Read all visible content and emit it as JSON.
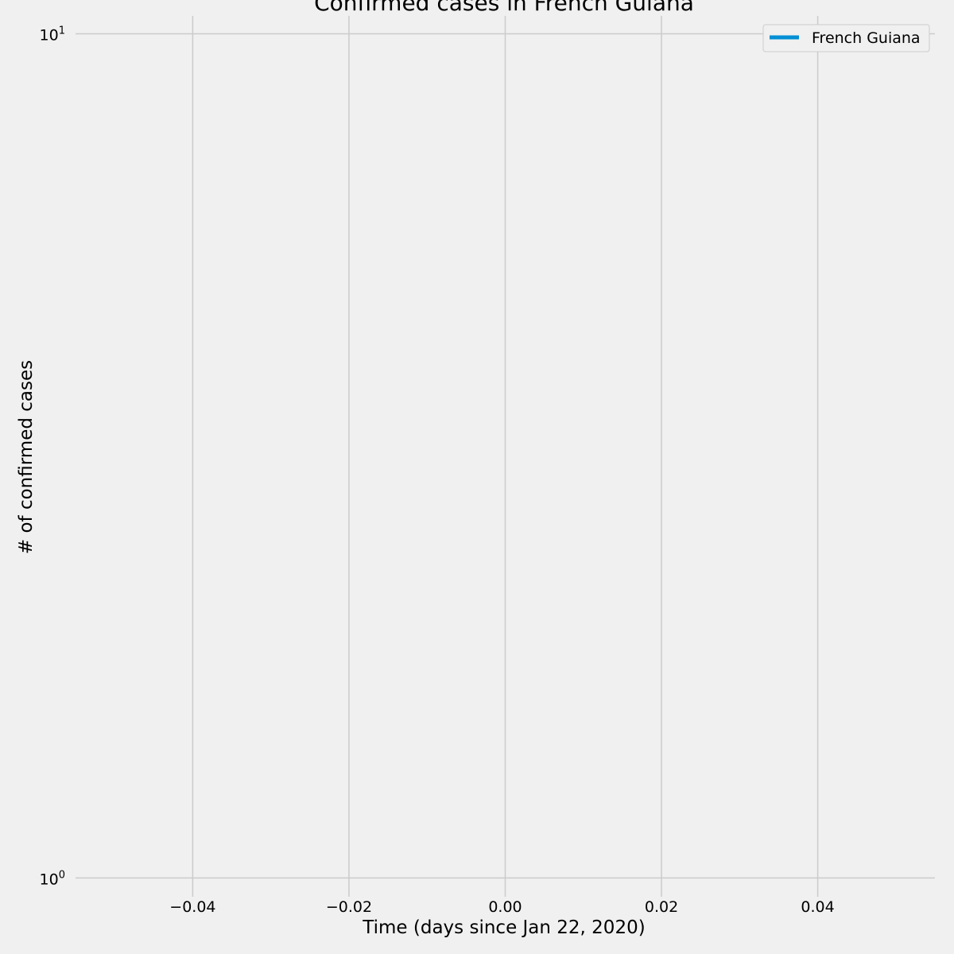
{
  "chart_data": {
    "type": "line",
    "title": "Confirmed cases in French Guiana",
    "xlabel": "Time (days since Jan 22, 2020)",
    "ylabel": "# of confirmed cases",
    "xlim": [
      -0.055,
      0.055
    ],
    "ylim": [
      0.95,
      10.5
    ],
    "yscale": "log",
    "x_ticks": [
      {
        "value": -0.04,
        "label": "−0.04"
      },
      {
        "value": -0.02,
        "label": "−0.02"
      },
      {
        "value": 0.0,
        "label": "0.00"
      },
      {
        "value": 0.02,
        "label": "0.02"
      },
      {
        "value": 0.04,
        "label": "0.04"
      }
    ],
    "y_ticks": [
      {
        "value": 1,
        "base": "10",
        "exp": "0"
      },
      {
        "value": 10,
        "base": "10",
        "exp": "1"
      }
    ],
    "grid": true,
    "legend_position": "top-right",
    "series": [
      {
        "name": "French Guiana",
        "color": "#008fd5",
        "x": [],
        "y": []
      }
    ]
  }
}
